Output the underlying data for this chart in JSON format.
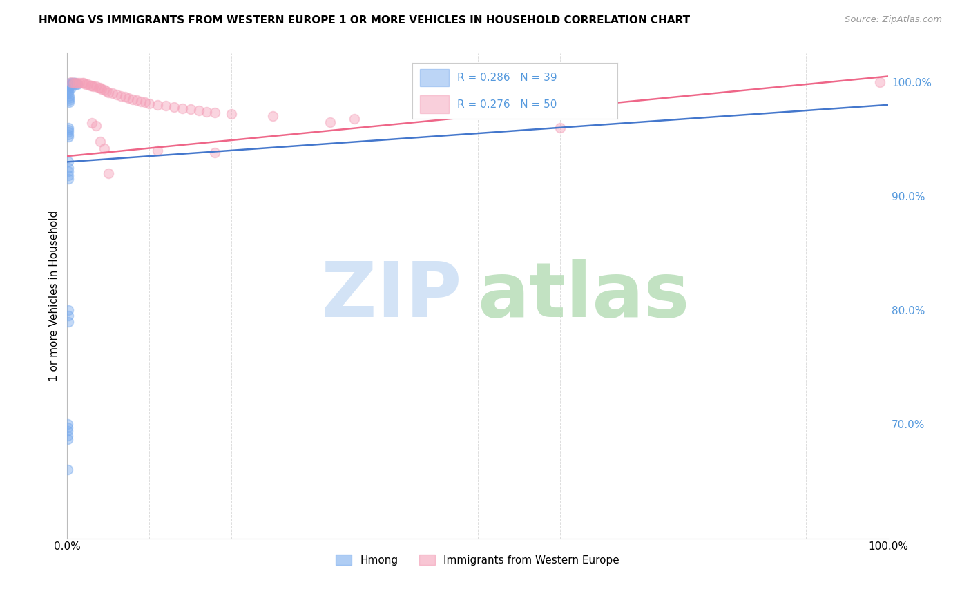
{
  "title": "HMONG VS IMMIGRANTS FROM WESTERN EUROPE 1 OR MORE VEHICLES IN HOUSEHOLD CORRELATION CHART",
  "source": "Source: ZipAtlas.com",
  "ylabel": "1 or more Vehicles in Household",
  "xlim": [
    0.0,
    1.0
  ],
  "ylim": [
    0.6,
    1.025
  ],
  "ytick_positions": [
    0.7,
    0.8,
    0.9,
    1.0
  ],
  "ytick_labels": [
    "70.0%",
    "80.0%",
    "90.0%",
    "100.0%"
  ],
  "xtick_positions": [
    0.0,
    0.1,
    0.2,
    0.3,
    0.4,
    0.5,
    0.6,
    0.7,
    0.8,
    0.9,
    1.0
  ],
  "xtick_labels": [
    "0.0%",
    "",
    "",
    "",
    "",
    "",
    "",
    "",
    "",
    "",
    "100.0%"
  ],
  "hmong_R": 0.286,
  "hmong_N": 39,
  "western_R": 0.276,
  "western_N": 50,
  "hmong_color": "#7aacee",
  "western_color": "#f4a0b8",
  "hmong_line_color": "#4477cc",
  "western_line_color": "#ee6688",
  "legend_label_hmong": "Hmong",
  "legend_label_western": "Immigrants from Western Europe",
  "watermark_zip_color": "#ccdff5",
  "watermark_atlas_color": "#b8ddb8",
  "grid_color": "#dddddd",
  "right_tick_color": "#5599dd",
  "hmong_x": [
    0.003,
    0.004,
    0.005,
    0.006,
    0.007,
    0.008,
    0.009,
    0.01,
    0.011,
    0.012,
    0.003,
    0.004,
    0.005,
    0.001,
    0.001,
    0.001,
    0.002,
    0.002,
    0.002,
    0.002,
    0.001,
    0.001,
    0.001,
    0.001,
    0.001,
    0.001,
    0.001,
    0.001,
    0.001,
    0.001,
    0.001,
    0.001,
    0.001,
    0.0005,
    0.0005,
    0.0005,
    0.0005,
    0.0005,
    0.0005
  ],
  "hmong_y": [
    0.999,
    0.998,
    0.998,
    0.999,
    0.999,
    0.999,
    0.999,
    0.999,
    0.998,
    0.998,
    0.997,
    0.996,
    0.995,
    0.994,
    0.992,
    0.99,
    0.988,
    0.986,
    0.984,
    0.982,
    0.96,
    0.958,
    0.956,
    0.954,
    0.952,
    0.93,
    0.925,
    0.922,
    0.918,
    0.915,
    0.8,
    0.795,
    0.79,
    0.7,
    0.697,
    0.694,
    0.69,
    0.687,
    0.66
  ],
  "western_x": [
    0.005,
    0.008,
    0.01,
    0.012,
    0.015,
    0.018,
    0.02,
    0.022,
    0.025,
    0.028,
    0.03,
    0.032,
    0.035,
    0.038,
    0.04,
    0.042,
    0.045,
    0.048,
    0.05,
    0.055,
    0.06,
    0.065,
    0.07,
    0.075,
    0.08,
    0.085,
    0.09,
    0.095,
    0.1,
    0.11,
    0.12,
    0.13,
    0.14,
    0.15,
    0.16,
    0.17,
    0.18,
    0.2,
    0.25,
    0.35,
    0.03,
    0.035,
    0.04,
    0.045,
    0.11,
    0.18,
    0.32,
    0.6,
    0.05,
    0.99
  ],
  "western_y": [
    1.0,
    0.999,
    0.999,
    0.999,
    0.999,
    0.999,
    0.999,
    0.998,
    0.998,
    0.997,
    0.997,
    0.996,
    0.996,
    0.995,
    0.995,
    0.994,
    0.993,
    0.992,
    0.991,
    0.99,
    0.989,
    0.988,
    0.987,
    0.986,
    0.985,
    0.984,
    0.983,
    0.982,
    0.981,
    0.98,
    0.979,
    0.978,
    0.977,
    0.976,
    0.975,
    0.974,
    0.973,
    0.972,
    0.97,
    0.968,
    0.964,
    0.962,
    0.948,
    0.942,
    0.94,
    0.938,
    0.965,
    0.96,
    0.92,
    1.0
  ],
  "hmong_trendline": [
    [
      0.0,
      0.93
    ],
    [
      1.0,
      0.98
    ]
  ],
  "western_trendline": [
    [
      0.0,
      0.935
    ],
    [
      1.0,
      1.005
    ]
  ]
}
